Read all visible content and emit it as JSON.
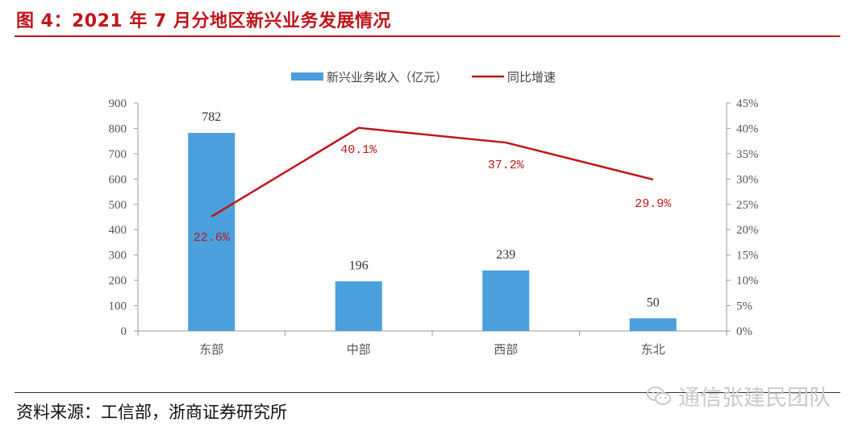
{
  "figure": {
    "title": "图 4：2021 年 7 月分地区新兴业务发展情况",
    "source": "资料来源：工信部，浙商证券研究所",
    "watermark": "通信张建民团队",
    "watermark_icon": "wechat-icon"
  },
  "colors": {
    "bar": "#4a9fdc",
    "line": "#c0141b",
    "title": "#c0141b"
  },
  "chart_data": {
    "type": "bar",
    "categories": [
      "东部",
      "中部",
      "西部",
      "东北"
    ],
    "series": [
      {
        "name": "新兴业务收入（亿元）",
        "type": "bar",
        "axis": "left",
        "values": [
          782,
          196,
          239,
          50
        ],
        "labels": [
          "782",
          "196",
          "239",
          "50"
        ]
      },
      {
        "name": "同比增速",
        "type": "line",
        "axis": "right",
        "values": [
          22.6,
          40.1,
          37.2,
          29.9
        ],
        "labels": [
          "22.6%",
          "40.1%",
          "37.2%",
          "29.9%"
        ]
      }
    ],
    "y_left": {
      "min": 0,
      "max": 900,
      "step": 100,
      "ticks": [
        "0",
        "100",
        "200",
        "300",
        "400",
        "500",
        "600",
        "700",
        "800",
        "900"
      ]
    },
    "y_right": {
      "min": 0,
      "max": 45,
      "step": 5,
      "ticks": [
        "0%",
        "5%",
        "10%",
        "15%",
        "20%",
        "25%",
        "30%",
        "35%",
        "40%",
        "45%"
      ]
    },
    "legend_position": "top",
    "grid": false
  }
}
